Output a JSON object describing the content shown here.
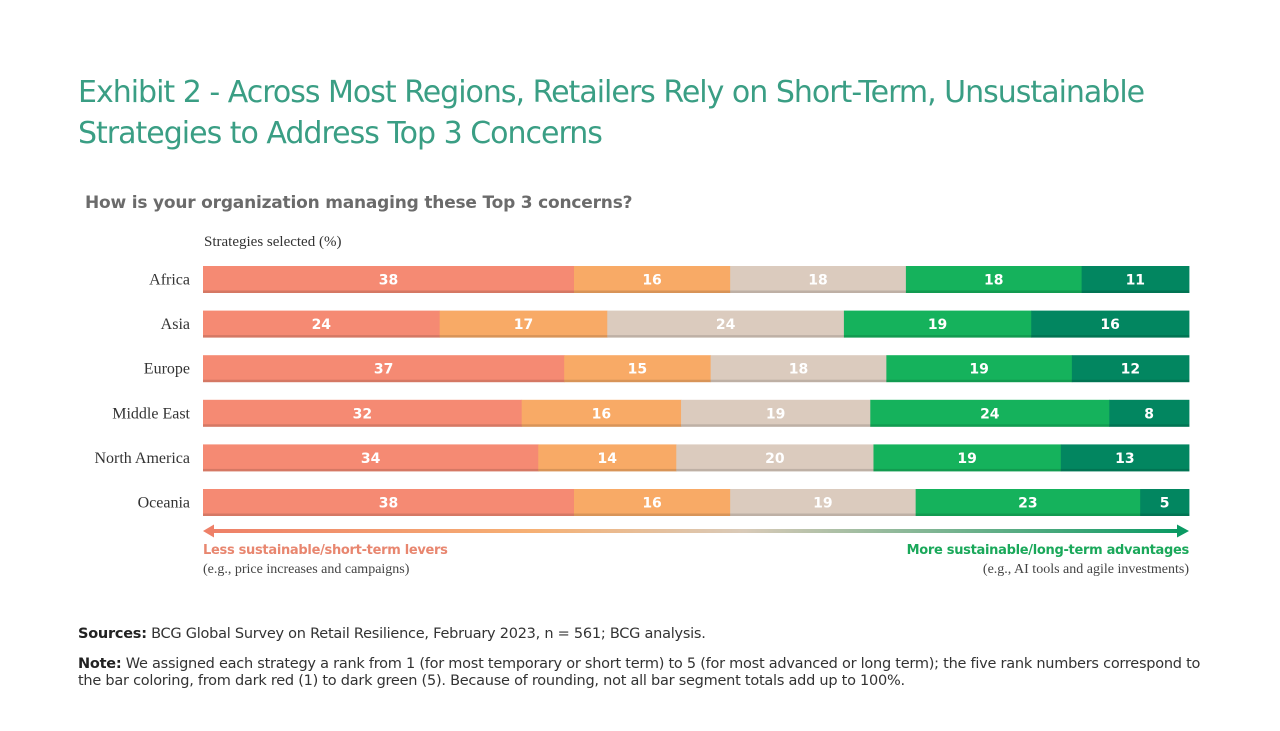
{
  "title": "Exhibit 2 - Across Most Regions, Retailers Rely on Short-Term, Unsustainable Strategies to Address Top 3 Concerns",
  "subtitle": "How is your organization managing these Top 3 concerns?",
  "unit_label": "Strategies selected (%)",
  "legend": {
    "left_title": "Less sustainable/short-term levers",
    "left_sub": "(e.g., price increases and campaigns)",
    "right_title": "More sustainable/long-term advantages",
    "right_sub": "(e.g., AI tools and agile investments)"
  },
  "footnotes": {
    "sources_label": "Sources:",
    "sources_text": "BCG Global Survey on Retail Resilience, February 2023, n = 561; BCG analysis.",
    "note_label": "Note:",
    "note_text": "We assigned each strategy a rank from 1 (for most temporary or short term) to 5 (for most advanced or long term); the five rank numbers correspond to the bar coloring, from dark red (1) to dark green (5). Because of rounding, not all bar segment totals add up to 100%."
  },
  "colors": {
    "rank1": "#f58a73",
    "rank2": "#f8aa66",
    "rank3": "#dbcbbe",
    "rank4": "#15b25c",
    "rank5": "#028660",
    "title": "#3a9e84"
  },
  "chart_data": {
    "type": "bar",
    "orientation": "horizontal-stacked",
    "categories": [
      "Africa",
      "Asia",
      "Europe",
      "Middle East",
      "North America",
      "Oceania"
    ],
    "series": [
      {
        "values": [
          38,
          24,
          37,
          32,
          34,
          38
        ]
      },
      {
        "values": [
          16,
          17,
          15,
          16,
          14,
          16
        ]
      },
      {
        "values": [
          18,
          24,
          18,
          19,
          20,
          19
        ]
      },
      {
        "values": [
          18,
          19,
          19,
          24,
          19,
          23
        ]
      },
      {
        "values": [
          11,
          16,
          12,
          8,
          13,
          5
        ]
      }
    ],
    "ylabel": "Strategies selected (%)",
    "grid": false
  }
}
